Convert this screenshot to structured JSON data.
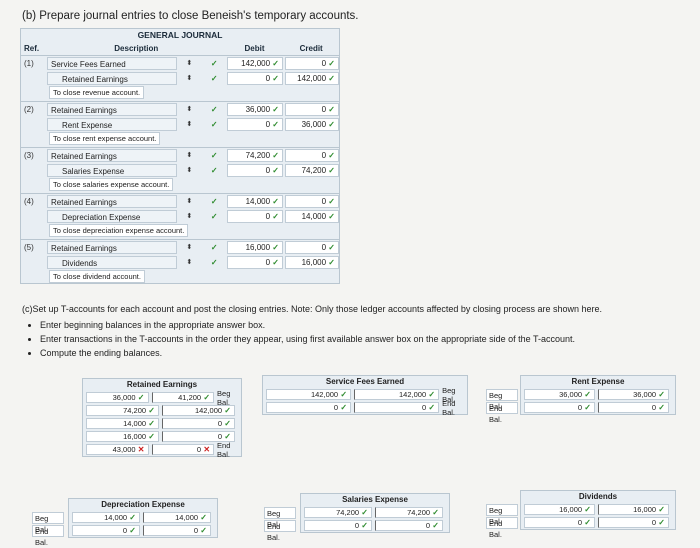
{
  "heading_b": "(b) Prepare journal entries to close Beneish's temporary accounts.",
  "journal": {
    "title": "GENERAL JOURNAL",
    "col_ref": "Ref.",
    "col_desc": "Description",
    "col_debit": "Debit",
    "col_credit": "Credit",
    "entries": [
      {
        "ref": "(1)",
        "dr_acct": "Service Fees Earned",
        "dr_amt": "142,000",
        "dr_cr": "0",
        "cr_acct": "Retained Earnings",
        "cr_dr": "0",
        "cr_amt": "142,000",
        "note": "To close revenue account."
      },
      {
        "ref": "(2)",
        "dr_acct": "Retained Earnings",
        "dr_amt": "36,000",
        "dr_cr": "0",
        "cr_acct": "Rent Expense",
        "cr_dr": "0",
        "cr_amt": "36,000",
        "note": "To close rent expense account."
      },
      {
        "ref": "(3)",
        "dr_acct": "Retained Earnings",
        "dr_amt": "74,200",
        "dr_cr": "0",
        "cr_acct": "Salaries Expense",
        "cr_dr": "0",
        "cr_amt": "74,200",
        "note": "To close salaries expense account."
      },
      {
        "ref": "(4)",
        "dr_acct": "Retained Earnings",
        "dr_amt": "14,000",
        "dr_cr": "0",
        "cr_acct": "Depreciation Expense",
        "cr_dr": "0",
        "cr_amt": "14,000",
        "note": "To close depreciation expense account."
      },
      {
        "ref": "(5)",
        "dr_acct": "Retained Earnings",
        "dr_amt": "16,000",
        "dr_cr": "0",
        "cr_acct": "Dividends",
        "cr_dr": "0",
        "cr_amt": "16,000",
        "note": "To close dividend account."
      }
    ]
  },
  "part_c": {
    "intro": "(c)Set up T-accounts for each account and post the closing entries. Note: Only those ledger accounts affected by closing process are shown here.",
    "bullets": [
      "Enter beginning balances in the appropriate answer box.",
      "Enter transactions in the T-accounts in the order they appear, using first available answer box on the appropriate side of the T-account.",
      "Compute the ending balances."
    ]
  },
  "taccounts": {
    "retained": {
      "name": "Retained Earnings",
      "left": [
        "36,000",
        "74,200",
        "14,000",
        "16,000",
        "43,000"
      ],
      "right": [
        "41,200",
        "142,000",
        "0",
        "0",
        "0"
      ],
      "beg_label": "Beg Bal.",
      "end_label": "End Bal."
    },
    "service": {
      "name": "Service Fees Earned",
      "left": [
        "142,000",
        "0"
      ],
      "right": [
        "142,000",
        "0"
      ],
      "beg_label": "Beg Bal.",
      "end_label": "End Bal."
    },
    "rent": {
      "name": "Rent Expense",
      "left": [
        "36,000",
        "0"
      ],
      "right": [
        "36,000",
        "0"
      ],
      "beg_label": "Beg Bal.",
      "end_label": "End Bal."
    },
    "depreciation": {
      "name": "Depreciation Expense",
      "left": [
        "14,000",
        "0"
      ],
      "right": [
        "14,000",
        "0"
      ],
      "beg_label": "Beg Bal.",
      "end_label": "End Bal."
    },
    "salaries": {
      "name": "Salaries Expense",
      "left": [
        "74,200",
        "0"
      ],
      "right": [
        "74,200",
        "0"
      ],
      "beg_label": "Beg Bal.",
      "end_label": "End Bal."
    },
    "dividends": {
      "name": "Dividends",
      "left": [
        "16,000",
        "0"
      ],
      "right": [
        "16,000",
        "0"
      ],
      "beg_label": "Beg Bal.",
      "end_label": "End Bal."
    }
  }
}
